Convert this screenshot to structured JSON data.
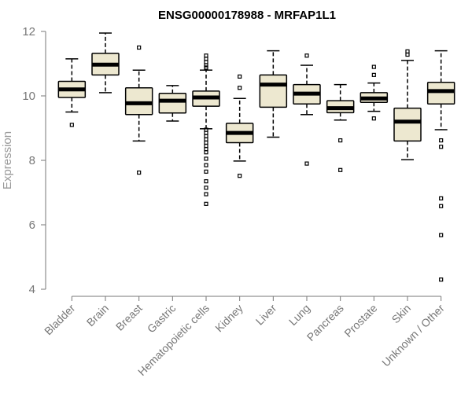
{
  "chart_data": {
    "type": "boxplot",
    "title": "ENSG00000178988 - MRFAP1L1",
    "xlabel": "",
    "ylabel": "Expression",
    "ylim": [
      4,
      12
    ],
    "yticks": [
      4,
      6,
      8,
      10,
      12
    ],
    "grid": false,
    "colors": {
      "box_fill": "#ede8d0",
      "stroke": "#000000",
      "axis": "#777777"
    },
    "categories": [
      "Bladder",
      "Brain",
      "Breast",
      "Gastric",
      "Hematopoietic cells",
      "Kidney",
      "Liver",
      "Lung",
      "Pancreas",
      "Prostate",
      "Skin",
      "Unknown / Other"
    ],
    "boxes": [
      {
        "category": "Bladder",
        "min": 9.5,
        "q1": 9.95,
        "median": 10.2,
        "q3": 10.45,
        "max": 11.15,
        "outliers": [
          9.1
        ]
      },
      {
        "category": "Brain",
        "min": 10.1,
        "q1": 10.65,
        "median": 10.97,
        "q3": 11.32,
        "max": 11.95,
        "outliers": []
      },
      {
        "category": "Breast",
        "min": 8.6,
        "q1": 9.42,
        "median": 9.77,
        "q3": 10.25,
        "max": 10.8,
        "outliers": [
          11.5,
          7.62
        ]
      },
      {
        "category": "Gastric",
        "min": 9.22,
        "q1": 9.47,
        "median": 9.85,
        "q3": 10.08,
        "max": 10.32,
        "outliers": []
      },
      {
        "category": "Hematopoietic cells",
        "min": 8.98,
        "q1": 9.68,
        "median": 9.95,
        "q3": 10.15,
        "max": 10.8,
        "outliers": [
          11.25,
          11.15,
          11.05,
          10.95,
          10.88,
          8.95,
          8.85,
          8.75,
          8.65,
          8.55,
          8.45,
          8.35,
          8.25,
          8.05,
          7.85,
          7.65,
          7.35,
          7.15,
          6.95,
          6.65
        ]
      },
      {
        "category": "Kidney",
        "min": 7.98,
        "q1": 8.55,
        "median": 8.85,
        "q3": 9.15,
        "max": 9.92,
        "outliers": [
          10.6,
          10.25,
          7.52
        ]
      },
      {
        "category": "Liver",
        "min": 8.72,
        "q1": 9.65,
        "median": 10.35,
        "q3": 10.65,
        "max": 11.4,
        "outliers": []
      },
      {
        "category": "Lung",
        "min": 9.42,
        "q1": 9.75,
        "median": 10.07,
        "q3": 10.35,
        "max": 10.95,
        "outliers": [
          11.25,
          7.9
        ]
      },
      {
        "category": "Pancreas",
        "min": 9.25,
        "q1": 9.48,
        "median": 9.62,
        "q3": 9.85,
        "max": 10.35,
        "outliers": [
          8.62,
          7.7
        ]
      },
      {
        "category": "Prostate",
        "min": 9.52,
        "q1": 9.8,
        "median": 9.92,
        "q3": 10.1,
        "max": 10.4,
        "outliers": [
          10.9,
          10.65,
          9.3
        ]
      },
      {
        "category": "Skin",
        "min": 8.02,
        "q1": 8.6,
        "median": 9.2,
        "q3": 9.62,
        "max": 11.1,
        "outliers": [
          11.38,
          11.28
        ]
      },
      {
        "category": "Unknown / Other",
        "min": 8.95,
        "q1": 9.75,
        "median": 10.15,
        "q3": 10.42,
        "max": 11.4,
        "outliers": [
          8.62,
          8.42,
          6.82,
          6.58,
          5.68,
          4.3
        ]
      }
    ]
  }
}
